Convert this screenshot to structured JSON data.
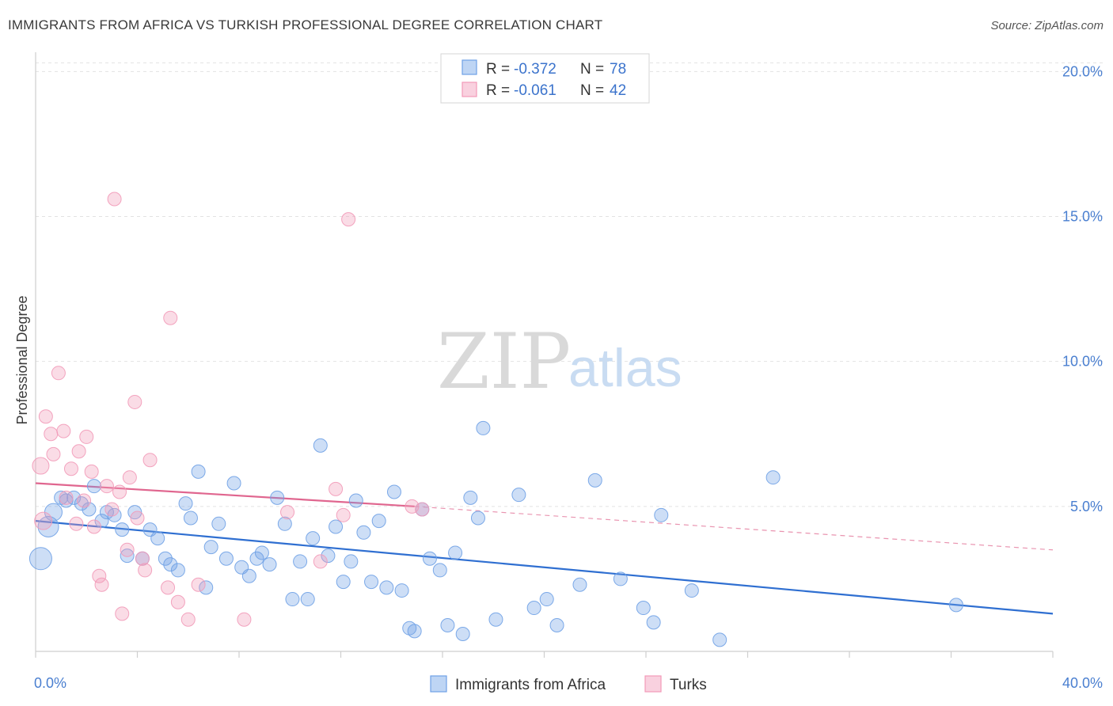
{
  "title": "IMMIGRANTS FROM AFRICA VS TURKISH PROFESSIONAL DEGREE CORRELATION CHART",
  "source": "Source: ZipAtlas.com",
  "watermark": {
    "zip": "ZIP",
    "atlas": "atlas"
  },
  "legend": {
    "r_label": "R =",
    "n_label": "N =",
    "rows": [
      {
        "r": "-0.372",
        "n": "78",
        "color": "#a9c8f2"
      },
      {
        "r": "-0.061",
        "n": "42",
        "color": "#f6bcd0"
      }
    ]
  },
  "chart_data": {
    "type": "scatter",
    "title": "IMMIGRANTS FROM AFRICA VS TURKISH PROFESSIONAL DEGREE CORRELATION CHART",
    "xlabel": "",
    "ylabel": "Professional Degree",
    "xlim": [
      0,
      40
    ],
    "ylim": [
      0,
      20.5
    ],
    "x_tick_labels": [
      "0.0%",
      "40.0%"
    ],
    "y_ticks": [
      5,
      10,
      15,
      20
    ],
    "y_tick_labels": [
      "5.0%",
      "10.0%",
      "15.0%",
      "20.0%"
    ],
    "grid": true,
    "legend_position": "top-center",
    "series": [
      {
        "name": "Immigrants from Africa",
        "color": "#6fa1e6",
        "line_color": "#2f6fd1",
        "trend": {
          "x": [
            0,
            40
          ],
          "y": [
            4.5,
            1.3
          ]
        },
        "points": [
          [
            0.2,
            3.2
          ],
          [
            0.5,
            4.3
          ],
          [
            0.7,
            4.8
          ],
          [
            1.0,
            5.3
          ],
          [
            1.2,
            5.2
          ],
          [
            1.5,
            5.3
          ],
          [
            1.8,
            5.1
          ],
          [
            2.1,
            4.9
          ],
          [
            2.3,
            5.7
          ],
          [
            2.6,
            4.5
          ],
          [
            2.8,
            4.8
          ],
          [
            3.1,
            4.7
          ],
          [
            3.4,
            4.2
          ],
          [
            3.6,
            3.3
          ],
          [
            3.9,
            4.8
          ],
          [
            4.2,
            3.2
          ],
          [
            4.5,
            4.2
          ],
          [
            4.8,
            3.9
          ],
          [
            5.1,
            3.2
          ],
          [
            5.3,
            3.0
          ],
          [
            5.6,
            2.8
          ],
          [
            5.9,
            5.1
          ],
          [
            6.1,
            4.6
          ],
          [
            6.4,
            6.2
          ],
          [
            6.7,
            2.2
          ],
          [
            6.9,
            3.6
          ],
          [
            7.2,
            4.4
          ],
          [
            7.5,
            3.2
          ],
          [
            7.8,
            5.8
          ],
          [
            8.1,
            2.9
          ],
          [
            8.4,
            2.6
          ],
          [
            8.7,
            3.2
          ],
          [
            8.9,
            3.4
          ],
          [
            9.2,
            3.0
          ],
          [
            9.5,
            5.3
          ],
          [
            9.8,
            4.4
          ],
          [
            10.1,
            1.8
          ],
          [
            10.4,
            3.1
          ],
          [
            10.7,
            1.8
          ],
          [
            10.9,
            3.9
          ],
          [
            11.2,
            7.1
          ],
          [
            11.5,
            3.3
          ],
          [
            11.8,
            4.3
          ],
          [
            12.1,
            2.4
          ],
          [
            12.4,
            3.1
          ],
          [
            12.6,
            5.2
          ],
          [
            12.9,
            4.1
          ],
          [
            13.2,
            2.4
          ],
          [
            13.5,
            4.5
          ],
          [
            13.8,
            2.2
          ],
          [
            14.1,
            5.5
          ],
          [
            14.4,
            2.1
          ],
          [
            14.7,
            0.8
          ],
          [
            14.9,
            0.7
          ],
          [
            15.2,
            4.9
          ],
          [
            15.5,
            3.2
          ],
          [
            15.9,
            2.8
          ],
          [
            16.2,
            0.9
          ],
          [
            16.5,
            3.4
          ],
          [
            16.8,
            0.6
          ],
          [
            17.1,
            5.3
          ],
          [
            17.4,
            4.6
          ],
          [
            17.6,
            7.7
          ],
          [
            18.1,
            1.1
          ],
          [
            19.0,
            5.4
          ],
          [
            19.6,
            1.5
          ],
          [
            20.1,
            1.8
          ],
          [
            20.5,
            0.9
          ],
          [
            21.4,
            2.3
          ],
          [
            22.0,
            5.9
          ],
          [
            23.0,
            2.5
          ],
          [
            23.9,
            1.5
          ],
          [
            24.3,
            1.0
          ],
          [
            24.6,
            4.7
          ],
          [
            25.8,
            2.1
          ],
          [
            26.9,
            0.4
          ],
          [
            29.0,
            6.0
          ],
          [
            36.2,
            1.6
          ]
        ]
      },
      {
        "name": "Turks",
        "color": "#f29ab8",
        "line_color": "#e0668f",
        "trend": {
          "x": [
            0,
            14.9
          ],
          "y": [
            5.8,
            5.0
          ],
          "dashed_to": {
            "x": 40,
            "y": 3.5
          }
        },
        "points": [
          [
            0.2,
            6.4
          ],
          [
            0.3,
            4.5
          ],
          [
            0.4,
            8.1
          ],
          [
            0.6,
            7.5
          ],
          [
            0.7,
            6.8
          ],
          [
            0.9,
            9.6
          ],
          [
            1.1,
            7.6
          ],
          [
            1.2,
            5.3
          ],
          [
            1.4,
            6.3
          ],
          [
            1.6,
            4.4
          ],
          [
            1.7,
            6.9
          ],
          [
            1.9,
            5.2
          ],
          [
            2.0,
            7.4
          ],
          [
            2.2,
            6.2
          ],
          [
            2.3,
            4.3
          ],
          [
            2.5,
            2.6
          ],
          [
            2.6,
            2.3
          ],
          [
            2.8,
            5.7
          ],
          [
            3.0,
            4.9
          ],
          [
            3.1,
            15.6
          ],
          [
            3.3,
            5.5
          ],
          [
            3.4,
            1.3
          ],
          [
            3.6,
            3.5
          ],
          [
            3.7,
            6.0
          ],
          [
            3.9,
            8.6
          ],
          [
            4.0,
            4.6
          ],
          [
            4.2,
            3.2
          ],
          [
            4.3,
            2.8
          ],
          [
            4.5,
            6.6
          ],
          [
            5.2,
            2.2
          ],
          [
            5.3,
            11.5
          ],
          [
            5.6,
            1.7
          ],
          [
            6.0,
            1.1
          ],
          [
            6.4,
            2.3
          ],
          [
            8.2,
            1.1
          ],
          [
            9.9,
            4.8
          ],
          [
            11.2,
            3.1
          ],
          [
            11.8,
            5.6
          ],
          [
            12.1,
            4.7
          ],
          [
            12.3,
            14.9
          ],
          [
            14.8,
            5.0
          ],
          [
            15.2,
            4.9
          ]
        ]
      }
    ]
  },
  "bottom_legend": [
    "Immigrants from Africa",
    "Turks"
  ]
}
